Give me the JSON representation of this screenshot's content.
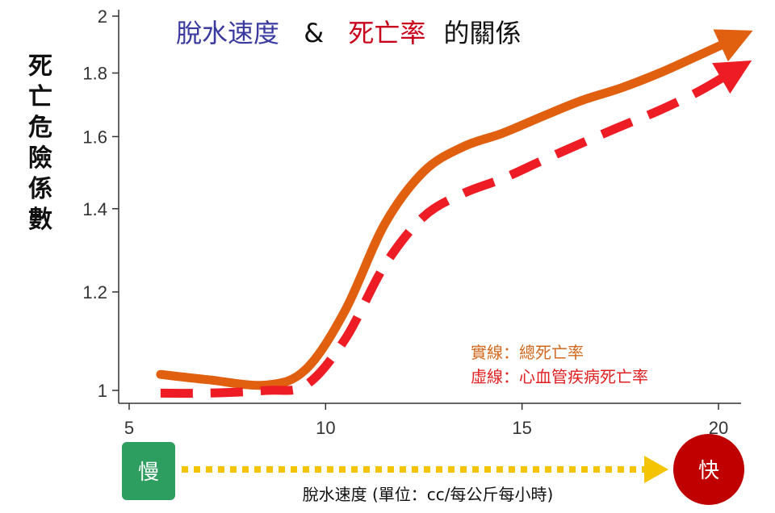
{
  "chart_data": {
    "type": "line",
    "title_parts": [
      {
        "text": "脫水速度",
        "color": "#3a3aa0"
      },
      {
        "text": "&",
        "color": "#111111"
      },
      {
        "text": "死亡率",
        "color": "#c8001c"
      },
      {
        "text": "的關係",
        "color": "#111111"
      }
    ],
    "ylabel": "死亡危險係數",
    "xlabel": "脫水速度 (單位：cc/每公斤每小時)",
    "xlim": [
      5,
      20.5
    ],
    "ylim": [
      0.97,
      2.02
    ],
    "y_scale": "log",
    "x_ticks": [
      5,
      10,
      15,
      20
    ],
    "y_ticks": [
      1,
      1.2,
      1.4,
      1.6,
      1.8,
      2
    ],
    "y_tick_labels": [
      "1",
      "1.2",
      "1.4",
      "1.6",
      "1.8",
      "2"
    ],
    "series": [
      {
        "name": "總死亡率",
        "style": "solid",
        "color": "#e06010",
        "arrow": true,
        "x": [
          5.8,
          7,
          8.5,
          9.5,
          10.5,
          11.5,
          12.5,
          13.5,
          14.5,
          15.5,
          16.5,
          17.5,
          18.5,
          19.5,
          20.3
        ],
        "y": [
          1.03,
          1.02,
          1.01,
          1.04,
          1.16,
          1.36,
          1.5,
          1.57,
          1.61,
          1.66,
          1.71,
          1.75,
          1.8,
          1.86,
          1.91
        ]
      },
      {
        "name": "心血管疾病死亡率",
        "style": "dashed",
        "color": "#ee1c24",
        "arrow": true,
        "x": [
          5.8,
          7,
          8.5,
          9.5,
          10.5,
          11.5,
          12.5,
          13.5,
          14.5,
          15.5,
          16.5,
          17.5,
          18.5,
          19.5,
          20.3
        ],
        "y": [
          0.995,
          0.995,
          1.0,
          1.01,
          1.1,
          1.26,
          1.38,
          1.44,
          1.48,
          1.53,
          1.58,
          1.63,
          1.68,
          1.74,
          1.8
        ]
      }
    ],
    "legend": {
      "placement": "lower-right",
      "entries": [
        {
          "label": "實線：總死亡率",
          "color": "#d2691e"
        },
        {
          "label": "虛線：心血管疾病死亡率",
          "color": "#e02020"
        }
      ]
    },
    "grid": false
  },
  "scale_bar": {
    "slow_label": "慢",
    "fast_label": "快",
    "slow_color": "#2e9e60",
    "fast_color": "#c00000",
    "arrow_color": "#f5c400"
  }
}
